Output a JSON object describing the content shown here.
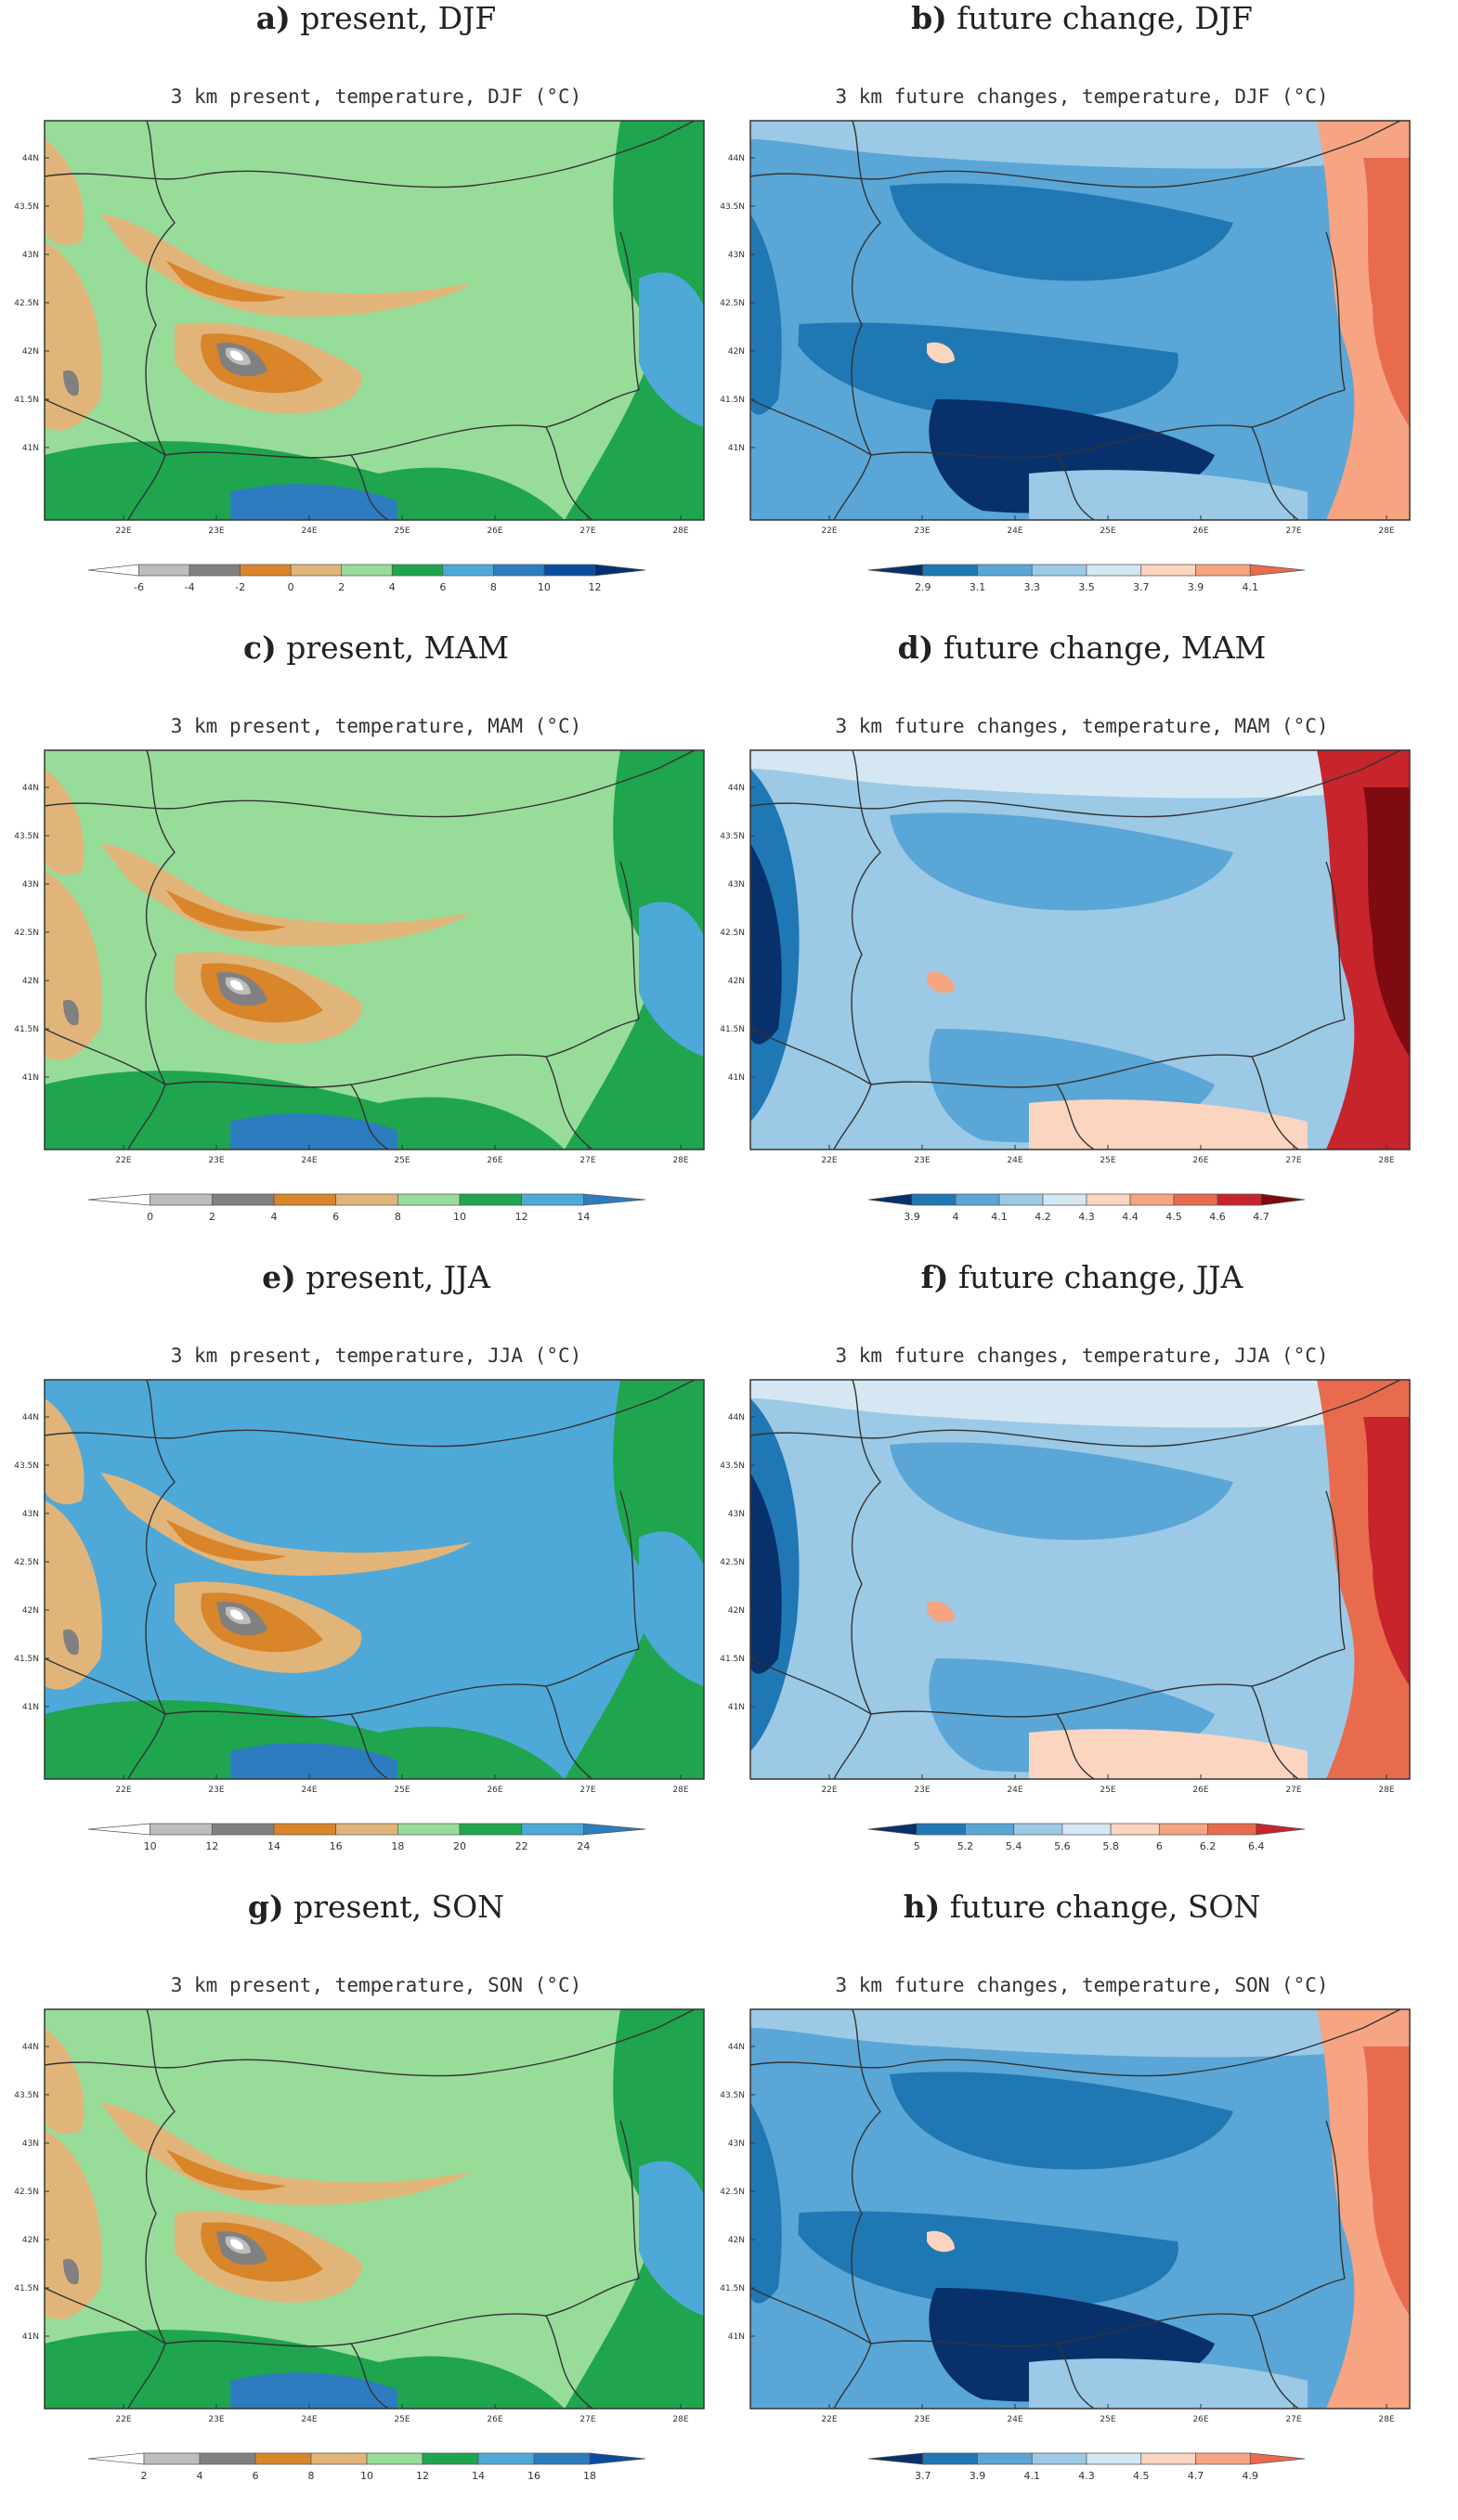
{
  "map_axes": {
    "y_ticks": [
      "44N",
      "43.5N",
      "43N",
      "42.5N",
      "42N",
      "41.5N",
      "41N"
    ],
    "x_ticks": [
      "22E",
      "23E",
      "24E",
      "25E",
      "26E",
      "27E",
      "28E"
    ]
  },
  "panels": [
    {
      "letter": "a)",
      "caption": "present, DJF",
      "map_title": "3 km present, temperature, DJF (°C)",
      "kind": "present",
      "colorbar": {
        "labels": [
          "-6",
          "-4",
          "-2",
          "0",
          "2",
          "4",
          "6",
          "8",
          "10",
          "12"
        ],
        "colors": [
          "#ffffff",
          "#bdbdbd",
          "#808080",
          "#d9852a",
          "#e1b57a",
          "#98dc9a",
          "#1fa54e",
          "#4ea9d9",
          "#2c7cbf",
          "#0a4c9e",
          "#062e73"
        ]
      }
    },
    {
      "letter": "b)",
      "caption": "future change, DJF",
      "map_title": "3 km future changes, temperature, DJF (°C)",
      "kind": "change_cool",
      "colorbar": {
        "labels": [
          "2.9",
          "3.1",
          "3.3",
          "3.5",
          "3.7",
          "3.9",
          "4.1"
        ],
        "colors": [
          "#08306b",
          "#1f78b4",
          "#5aa6d6",
          "#9cc9e6",
          "#d5e7f3",
          "#fbd5c0",
          "#f7a482",
          "#e96b4e"
        ]
      }
    },
    {
      "letter": "c)",
      "caption": "present, MAM",
      "map_title": "3 km present, temperature, MAM (°C)",
      "kind": "present",
      "colorbar": {
        "labels": [
          "0",
          "2",
          "4",
          "6",
          "8",
          "10",
          "12",
          "14"
        ],
        "colors": [
          "#ffffff",
          "#bdbdbd",
          "#808080",
          "#d9852a",
          "#e1b57a",
          "#98dc9a",
          "#1fa54e",
          "#4ea9d9",
          "#2c7cbf"
        ]
      }
    },
    {
      "letter": "d)",
      "caption": "future change, MAM",
      "map_title": "3 km future changes, temperature, MAM (°C)",
      "kind": "change_warm",
      "colorbar": {
        "labels": [
          "3.9",
          "4",
          "4.1",
          "4.2",
          "4.3",
          "4.4",
          "4.5",
          "4.6",
          "4.7"
        ],
        "colors": [
          "#08306b",
          "#1f78b4",
          "#5aa6d6",
          "#9cc9e6",
          "#d5e7f3",
          "#fbd5c0",
          "#f7a482",
          "#e96b4e",
          "#c8242b",
          "#7f0a12"
        ]
      }
    },
    {
      "letter": "e)",
      "caption": "present, JJA",
      "map_title": "3 km present, temperature, JJA (°C)",
      "kind": "present_summer",
      "colorbar": {
        "labels": [
          "10",
          "12",
          "14",
          "16",
          "18",
          "20",
          "22",
          "24"
        ],
        "colors": [
          "#ffffff",
          "#bdbdbd",
          "#808080",
          "#d9852a",
          "#e1b57a",
          "#98dc9a",
          "#1fa54e",
          "#4ea9d9",
          "#2c7cbf"
        ]
      }
    },
    {
      "letter": "f)",
      "caption": "future change, JJA",
      "map_title": "3 km future changes, temperature, JJA (°C)",
      "kind": "change_warm",
      "colorbar": {
        "labels": [
          "5",
          "5.2",
          "5.4",
          "5.6",
          "5.8",
          "6",
          "6.2",
          "6.4"
        ],
        "colors": [
          "#08306b",
          "#1f78b4",
          "#5aa6d6",
          "#9cc9e6",
          "#d5e7f3",
          "#fbd5c0",
          "#f7a482",
          "#e96b4e",
          "#c8242b"
        ]
      }
    },
    {
      "letter": "g)",
      "caption": "present, SON",
      "map_title": "3 km present, temperature, SON (°C)",
      "kind": "present",
      "colorbar": {
        "labels": [
          "2",
          "4",
          "6",
          "8",
          "10",
          "12",
          "14",
          "16",
          "18"
        ],
        "colors": [
          "#ffffff",
          "#bdbdbd",
          "#808080",
          "#d9852a",
          "#e1b57a",
          "#98dc9a",
          "#1fa54e",
          "#4ea9d9",
          "#2c7cbf",
          "#0a4c9e"
        ]
      }
    },
    {
      "letter": "h)",
      "caption": "future change, SON",
      "map_title": "3 km future changes, temperature, SON (°C)",
      "kind": "change_cool",
      "colorbar": {
        "labels": [
          "3.7",
          "3.9",
          "4.1",
          "4.3",
          "4.5",
          "4.7",
          "4.9"
        ],
        "colors": [
          "#08306b",
          "#1f78b4",
          "#5aa6d6",
          "#9cc9e6",
          "#d5e7f3",
          "#fbd5c0",
          "#f7a482",
          "#e96b4e"
        ]
      }
    }
  ]
}
